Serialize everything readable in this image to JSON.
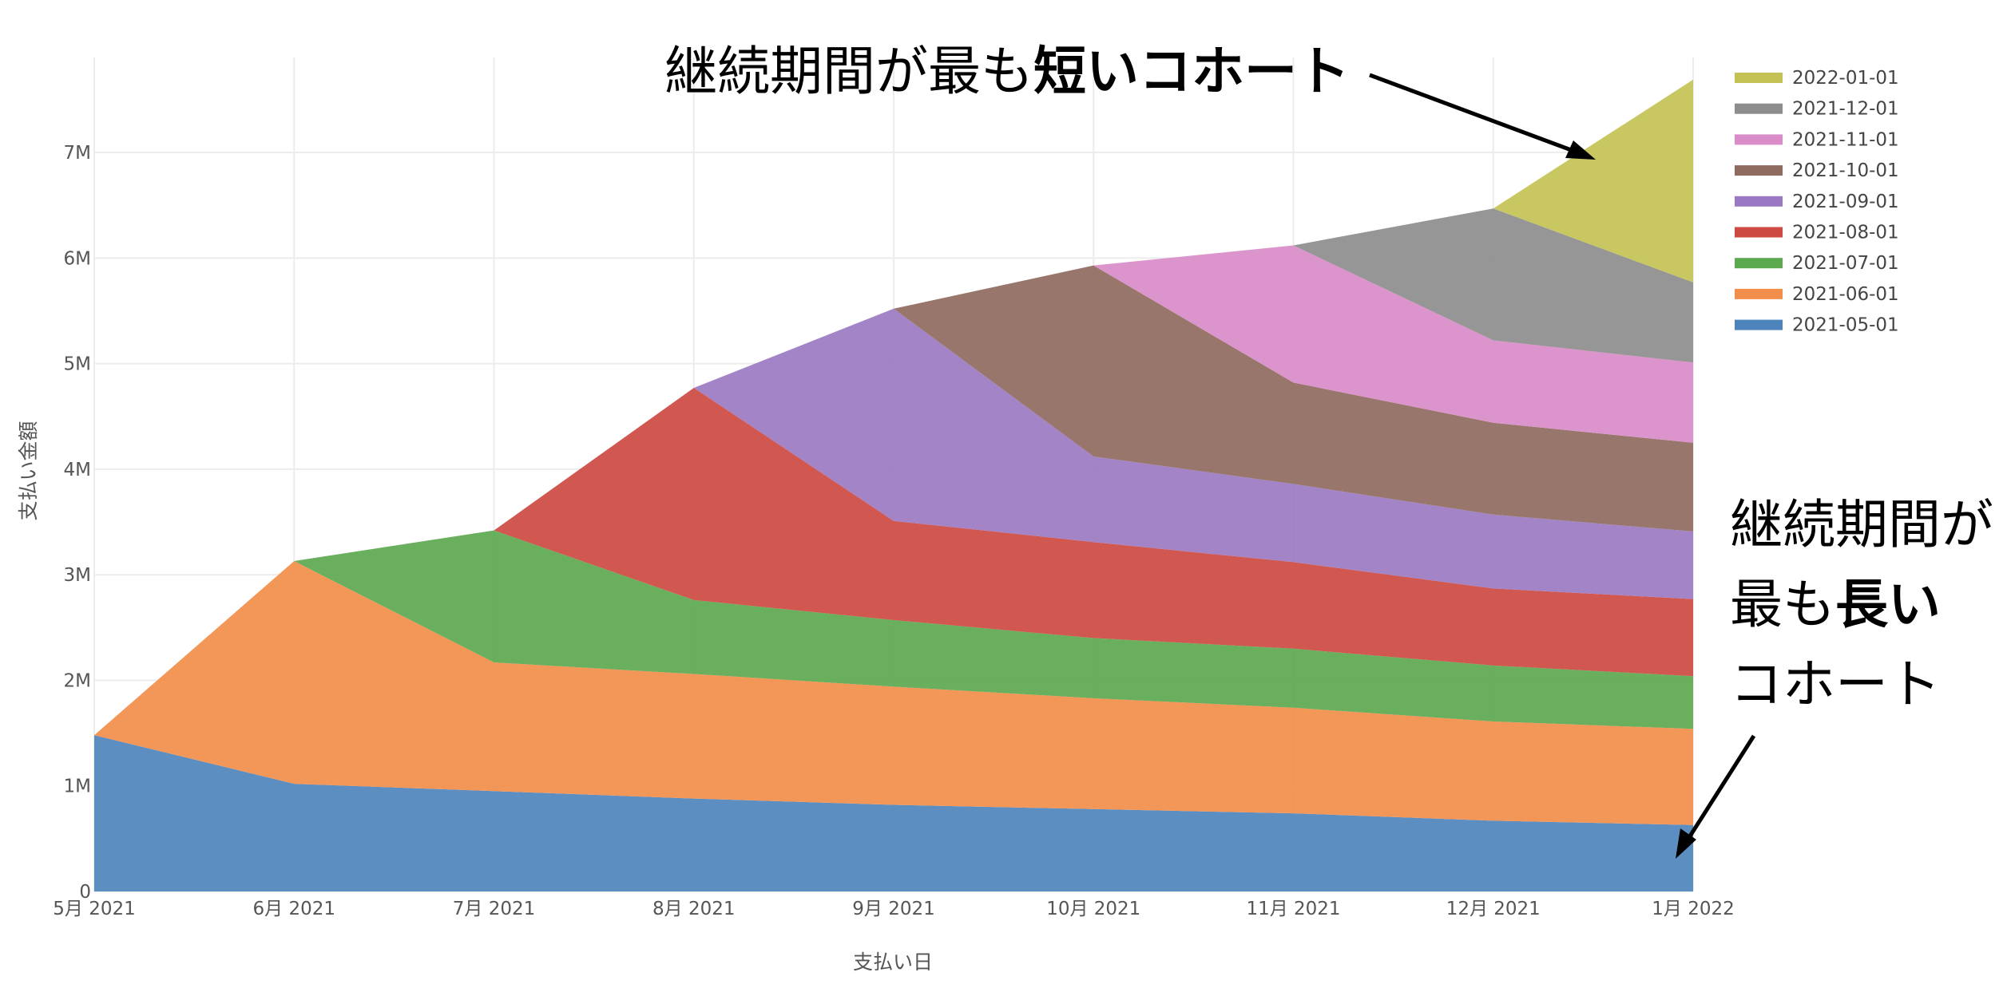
{
  "chart_data": {
    "type": "area",
    "stacked": true,
    "xlabel": "支払い日",
    "ylabel": "支払い金額",
    "x": [
      "5月 2021",
      "6月 2021",
      "7月 2021",
      "8月 2021",
      "9月 2021",
      "10月 2021",
      "11月 2021",
      "12月 2021",
      "1月 2022"
    ],
    "y_ticks": [
      "0",
      "1M",
      "2M",
      "3M",
      "4M",
      "5M",
      "6M",
      "7M"
    ],
    "ylim": [
      0,
      7900000
    ],
    "grid": true,
    "legend_position": "top-right",
    "series": [
      {
        "name": "2021-05-01",
        "color": "#4e84bc",
        "values": [
          1480000,
          1020000,
          950000,
          880000,
          820000,
          780000,
          740000,
          670000,
          630000
        ]
      },
      {
        "name": "2021-06-01",
        "color": "#f28e4b",
        "values": [
          null,
          2110000,
          1220000,
          1180000,
          1120000,
          1050000,
          1000000,
          940000,
          910000
        ]
      },
      {
        "name": "2021-07-01",
        "color": "#5ca84f",
        "values": [
          null,
          null,
          1250000,
          700000,
          630000,
          570000,
          560000,
          530000,
          500000
        ]
      },
      {
        "name": "2021-08-01",
        "color": "#cd4a42",
        "values": [
          null,
          null,
          null,
          2010000,
          940000,
          910000,
          820000,
          730000,
          730000
        ]
      },
      {
        "name": "2021-09-01",
        "color": "#9b79c2",
        "values": [
          null,
          null,
          null,
          null,
          2010000,
          810000,
          740000,
          700000,
          640000
        ]
      },
      {
        "name": "2021-10-01",
        "color": "#8f6a5e",
        "values": [
          null,
          null,
          null,
          null,
          null,
          1810000,
          960000,
          870000,
          840000
        ]
      },
      {
        "name": "2021-11-01",
        "color": "#d98cc8",
        "values": [
          null,
          null,
          null,
          null,
          null,
          null,
          1300000,
          780000,
          760000
        ]
      },
      {
        "name": "2021-12-01",
        "color": "#8d8d8d",
        "values": [
          null,
          null,
          null,
          null,
          null,
          null,
          null,
          1250000,
          760000
        ]
      },
      {
        "name": "2022-01-01",
        "color": "#c4c254",
        "values": [
          null,
          null,
          null,
          null,
          null,
          null,
          null,
          null,
          1920000
        ]
      }
    ]
  },
  "annotations": {
    "shortest": {
      "normal": "継続期間が最も",
      "bold": "短いコホート"
    },
    "longest": {
      "line1": "継続期間が",
      "line2_normal": "最も",
      "line2_bold": "長い",
      "line3": "コホート"
    }
  }
}
